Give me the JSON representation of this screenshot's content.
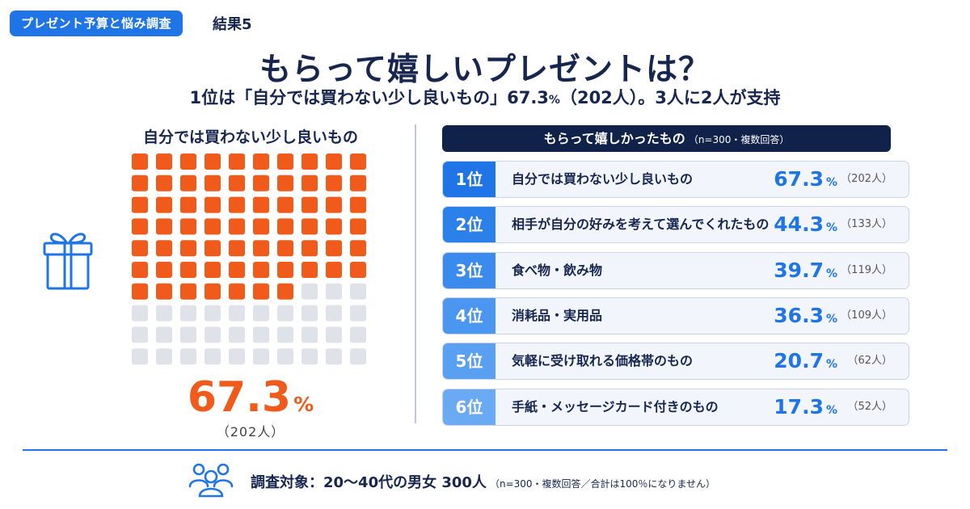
{
  "header": {
    "tag": "プレゼント予算と悩み調査",
    "result_label": "結果5",
    "title": "もらって嬉しいプレゼントは？",
    "subtitle_main": "1位は「自分では買わない少し良いもの」67.3",
    "subtitle_pct": "%",
    "subtitle_rest": "（202人）。3人に2人が支持"
  },
  "waffle": {
    "title": "自分では買わない少し良いもの",
    "filled_count": 67,
    "total_count": 100,
    "filled_color": "#f05a1a",
    "empty_color": "#dfe2e8",
    "percent": "67.3",
    "percent_unit": "%",
    "count": "（202人）"
  },
  "list": {
    "header": "もらって嬉しかったもの",
    "header_note": "（n=300・複数回答）"
  },
  "chart_data": {
    "type": "table",
    "title": "もらって嬉しかったもの",
    "columns": [
      "rank",
      "item",
      "percent",
      "count"
    ],
    "rows": [
      {
        "rank": "1位",
        "label": "自分では買わない少し良いもの",
        "value": 67.3,
        "count": "（202人）",
        "color": "#1f74e6"
      },
      {
        "rank": "2位",
        "label": "相手が自分の好みを考えて選んでくれたもの",
        "value": 44.3,
        "count": "（133人）",
        "color": "#2c80ea"
      },
      {
        "rank": "3位",
        "label": "食べ物・飲み物",
        "value": 39.7,
        "count": "（119人）",
        "color": "#3b8bee"
      },
      {
        "rank": "4位",
        "label": "消耗品・実用品",
        "value": 36.3,
        "count": "（109人）",
        "color": "#4a96f0"
      },
      {
        "rank": "5位",
        "label": "気軽に受け取れる価格帯のもの",
        "value": 20.7,
        "count": "（62人）",
        "color": "#5aa0f2"
      },
      {
        "rank": "6位",
        "label": "手紙・メッセージカード付きのもの",
        "value": 17.3,
        "count": "（52人）",
        "color": "#6aaaf4"
      }
    ],
    "unit": "%"
  },
  "footer": {
    "main": "調査対象：20〜40代の男女 300人",
    "note": "（n=300・複数回答／合計は100％になりません）"
  },
  "icons": {
    "gift": "gift-icon",
    "people": "people-icon"
  },
  "colors": {
    "accent": "#1f74e6",
    "navy": "#10214a",
    "orange": "#f05a1a"
  }
}
